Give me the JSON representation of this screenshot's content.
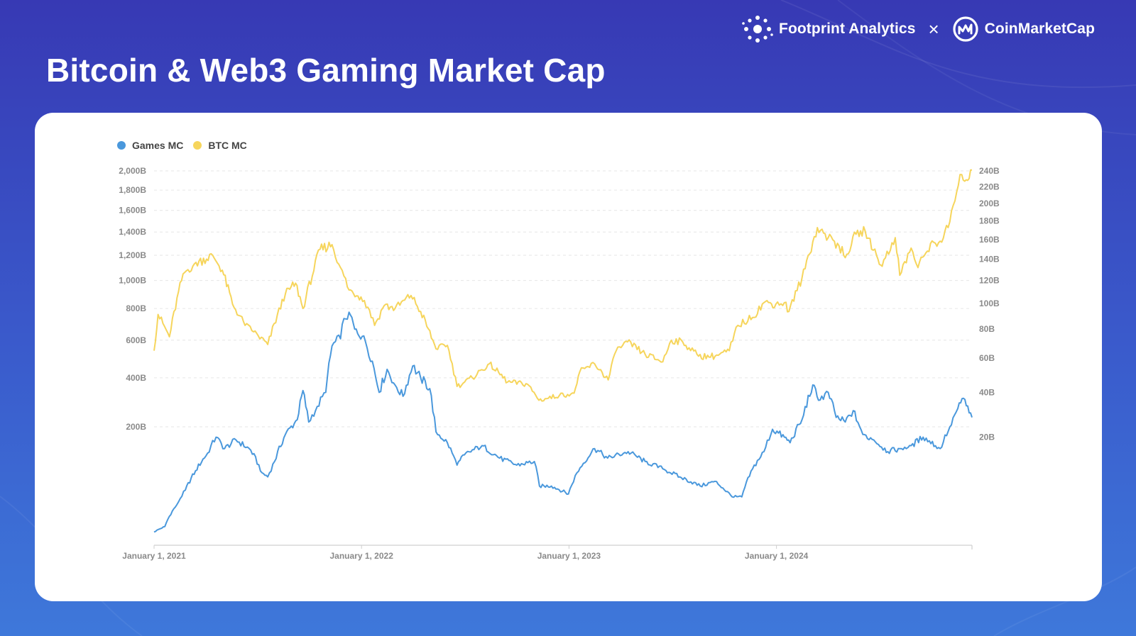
{
  "page": {
    "title": "Bitcoin & Web3 Gaming Market Cap"
  },
  "brands": {
    "left": "Footprint Analytics",
    "separator": "×",
    "right": "CoinMarketCap"
  },
  "colors": {
    "games": "#4a98dc",
    "btc": "#f6d55c",
    "axis_text": "#8a8a8a",
    "grid": "#e6e6e6",
    "white": "#ffffff"
  },
  "chart_data": {
    "type": "line",
    "title": "Bitcoin & Web3 Gaming Market Cap",
    "x_range": [
      "2021-01-01",
      "2024-12-10"
    ],
    "x_ticks": [
      {
        "date": "2021-01-01",
        "label": "January 1, 2021"
      },
      {
        "date": "2022-01-01",
        "label": "January 1, 2022"
      },
      {
        "date": "2023-01-01",
        "label": "January 1, 2023"
      },
      {
        "date": "2024-01-01",
        "label": "January 1, 2024"
      }
    ],
    "y_left": {
      "unit": "B",
      "scale": "sqrt",
      "range": [
        0,
        2000
      ],
      "ticks": [
        {
          "value": 200,
          "label": "200B"
        },
        {
          "value": 400,
          "label": "400B"
        },
        {
          "value": 600,
          "label": "600B"
        },
        {
          "value": 800,
          "label": "800B"
        },
        {
          "value": 1000,
          "label": "1,000B"
        },
        {
          "value": 1200,
          "label": "1,200B"
        },
        {
          "value": 1400,
          "label": "1,400B"
        },
        {
          "value": 1600,
          "label": "1,600B"
        },
        {
          "value": 1800,
          "label": "1,800B"
        },
        {
          "value": 2000,
          "label": "2,000B"
        }
      ]
    },
    "y_right": {
      "unit": "B",
      "scale": "sqrt",
      "range": [
        0,
        240
      ],
      "ticks": [
        {
          "value": 20,
          "label": "20B"
        },
        {
          "value": 40,
          "label": "40B"
        },
        {
          "value": 60,
          "label": "60B"
        },
        {
          "value": 80,
          "label": "80B"
        },
        {
          "value": 100,
          "label": "100B"
        },
        {
          "value": 120,
          "label": "120B"
        },
        {
          "value": 140,
          "label": "140B"
        },
        {
          "value": 160,
          "label": "160B"
        },
        {
          "value": 180,
          "label": "180B"
        },
        {
          "value": 200,
          "label": "200B"
        },
        {
          "value": 220,
          "label": "220B"
        },
        {
          "value": 240,
          "label": "240B"
        }
      ]
    },
    "legend": {
      "position": "top-left",
      "items": [
        "Games MC",
        "BTC MC"
      ]
    },
    "series": [
      {
        "name": "Games MC",
        "axis": "right",
        "color": "#4a98dc",
        "points": [
          [
            "2021-01-01",
            0.3
          ],
          [
            "2021-01-20",
            0.6
          ],
          [
            "2021-02-10",
            2.8
          ],
          [
            "2021-02-25",
            5.2
          ],
          [
            "2021-03-15",
            9.5
          ],
          [
            "2021-04-05",
            14.5
          ],
          [
            "2021-04-20",
            20
          ],
          [
            "2021-05-05",
            16
          ],
          [
            "2021-05-25",
            19
          ],
          [
            "2021-06-20",
            15.5
          ],
          [
            "2021-07-10",
            9
          ],
          [
            "2021-07-20",
            8
          ],
          [
            "2021-08-01",
            12
          ],
          [
            "2021-08-20",
            21
          ],
          [
            "2021-09-10",
            27
          ],
          [
            "2021-09-20",
            41
          ],
          [
            "2021-09-30",
            26
          ],
          [
            "2021-10-15",
            33
          ],
          [
            "2021-10-30",
            40
          ],
          [
            "2021-11-10",
            68
          ],
          [
            "2021-11-25",
            73
          ],
          [
            "2021-12-01",
            88
          ],
          [
            "2021-12-10",
            93
          ],
          [
            "2021-12-20",
            80
          ],
          [
            "2022-01-05",
            75
          ],
          [
            "2022-01-20",
            58
          ],
          [
            "2022-02-01",
            40
          ],
          [
            "2022-02-15",
            53
          ],
          [
            "2022-03-01",
            44
          ],
          [
            "2022-03-15",
            38
          ],
          [
            "2022-04-01",
            55
          ],
          [
            "2022-04-15",
            48
          ],
          [
            "2022-05-01",
            42
          ],
          [
            "2022-05-12",
            22
          ],
          [
            "2022-06-01",
            18
          ],
          [
            "2022-06-18",
            11
          ],
          [
            "2022-07-01",
            14
          ],
          [
            "2022-08-01",
            17
          ],
          [
            "2022-09-01",
            13
          ],
          [
            "2022-10-01",
            11
          ],
          [
            "2022-11-01",
            12
          ],
          [
            "2022-11-10",
            6
          ],
          [
            "2022-12-01",
            6
          ],
          [
            "2022-12-31",
            4.5
          ],
          [
            "2023-01-15",
            9
          ],
          [
            "2023-02-15",
            16
          ],
          [
            "2023-03-10",
            13
          ],
          [
            "2023-04-15",
            15
          ],
          [
            "2023-05-15",
            12
          ],
          [
            "2023-06-15",
            10
          ],
          [
            "2023-07-15",
            8
          ],
          [
            "2023-08-20",
            6
          ],
          [
            "2023-09-15",
            7
          ],
          [
            "2023-10-15",
            4
          ],
          [
            "2023-11-01",
            4
          ],
          [
            "2023-11-20",
            10
          ],
          [
            "2023-12-10",
            15
          ],
          [
            "2023-12-25",
            23
          ],
          [
            "2024-01-15",
            20
          ],
          [
            "2024-01-25",
            18
          ],
          [
            "2024-02-15",
            27
          ],
          [
            "2024-03-05",
            44
          ],
          [
            "2024-03-15",
            36
          ],
          [
            "2024-04-01",
            40
          ],
          [
            "2024-04-15",
            28
          ],
          [
            "2024-05-01",
            26
          ],
          [
            "2024-05-15",
            31
          ],
          [
            "2024-06-01",
            21
          ],
          [
            "2024-06-20",
            19
          ],
          [
            "2024-07-15",
            15
          ],
          [
            "2024-08-05",
            16
          ],
          [
            "2024-08-25",
            17
          ],
          [
            "2024-09-15",
            20
          ],
          [
            "2024-10-15",
            16
          ],
          [
            "2024-11-01",
            24
          ],
          [
            "2024-11-15",
            32
          ],
          [
            "2024-11-25",
            37
          ],
          [
            "2024-12-05",
            30
          ],
          [
            "2024-12-10",
            28
          ]
        ]
      },
      {
        "name": "BTC MC",
        "axis": "left",
        "color": "#f6d55c",
        "points": [
          [
            "2021-01-01",
            540
          ],
          [
            "2021-01-08",
            760
          ],
          [
            "2021-01-28",
            620
          ],
          [
            "2021-02-21",
            1050
          ],
          [
            "2021-03-13",
            1130
          ],
          [
            "2021-04-14",
            1200
          ],
          [
            "2021-05-01",
            1080
          ],
          [
            "2021-05-19",
            830
          ],
          [
            "2021-06-10",
            690
          ],
          [
            "2021-06-25",
            650
          ],
          [
            "2021-07-20",
            575
          ],
          [
            "2021-08-20",
            900
          ],
          [
            "2021-09-07",
            980
          ],
          [
            "2021-09-20",
            800
          ],
          [
            "2021-10-20",
            1250
          ],
          [
            "2021-11-10",
            1290
          ],
          [
            "2021-11-25",
            1100
          ],
          [
            "2021-12-10",
            930
          ],
          [
            "2021-12-31",
            880
          ],
          [
            "2022-01-15",
            790
          ],
          [
            "2022-01-24",
            690
          ],
          [
            "2022-02-10",
            820
          ],
          [
            "2022-03-01",
            800
          ],
          [
            "2022-03-29",
            890
          ],
          [
            "2022-04-15",
            780
          ],
          [
            "2022-05-12",
            550
          ],
          [
            "2022-06-01",
            570
          ],
          [
            "2022-06-18",
            360
          ],
          [
            "2022-07-15",
            400
          ],
          [
            "2022-08-14",
            470
          ],
          [
            "2022-09-15",
            380
          ],
          [
            "2022-10-20",
            370
          ],
          [
            "2022-11-09",
            300
          ],
          [
            "2022-12-15",
            320
          ],
          [
            "2023-01-10",
            330
          ],
          [
            "2023-01-20",
            430
          ],
          [
            "2023-02-15",
            470
          ],
          [
            "2023-03-11",
            390
          ],
          [
            "2023-03-25",
            540
          ],
          [
            "2023-04-14",
            590
          ],
          [
            "2023-05-15",
            520
          ],
          [
            "2023-06-15",
            480
          ],
          [
            "2023-06-30",
            600
          ],
          [
            "2023-07-20",
            590
          ],
          [
            "2023-08-17",
            510
          ],
          [
            "2023-09-15",
            510
          ],
          [
            "2023-10-10",
            540
          ],
          [
            "2023-10-25",
            690
          ],
          [
            "2023-11-20",
            740
          ],
          [
            "2023-12-10",
            840
          ],
          [
            "2023-12-31",
            830
          ],
          [
            "2024-01-15",
            840
          ],
          [
            "2024-01-23",
            780
          ],
          [
            "2024-02-15",
            1020
          ],
          [
            "2024-03-13",
            1440
          ],
          [
            "2024-04-01",
            1350
          ],
          [
            "2024-04-20",
            1280
          ],
          [
            "2024-05-01",
            1180
          ],
          [
            "2024-05-20",
            1380
          ],
          [
            "2024-06-05",
            1410
          ],
          [
            "2024-06-25",
            1200
          ],
          [
            "2024-07-05",
            1110
          ],
          [
            "2024-07-28",
            1350
          ],
          [
            "2024-08-05",
            1040
          ],
          [
            "2024-08-25",
            1260
          ],
          [
            "2024-09-06",
            1100
          ],
          [
            "2024-09-28",
            1300
          ],
          [
            "2024-10-15",
            1320
          ],
          [
            "2024-10-29",
            1440
          ],
          [
            "2024-11-13",
            1780
          ],
          [
            "2024-11-22",
            1960
          ],
          [
            "2024-12-05",
            1920
          ],
          [
            "2024-12-10",
            2010
          ]
        ]
      }
    ]
  }
}
